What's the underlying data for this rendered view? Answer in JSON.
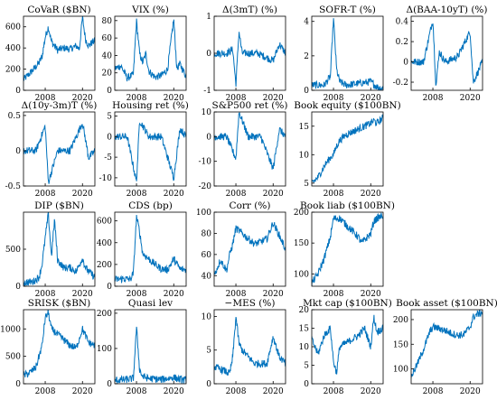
{
  "figure": {
    "line_color": "#0072BD",
    "frame_color": "#000000",
    "x_ticks": [
      "2008",
      "2020"
    ]
  },
  "chart_data": [
    {
      "type": "line",
      "title": "CoVaR ($BN)",
      "ylim": [
        0,
        700
      ],
      "yticks": [
        "0",
        "200",
        "400",
        "600"
      ],
      "x": [
        2001,
        2004,
        2006,
        2007,
        2008,
        2009,
        2010,
        2012,
        2014,
        2016,
        2018,
        2019,
        2020,
        2021,
        2022,
        2023,
        2024
      ],
      "values": [
        100,
        190,
        260,
        320,
        500,
        600,
        460,
        380,
        400,
        390,
        420,
        390,
        690,
        480,
        420,
        450,
        470
      ]
    },
    {
      "type": "line",
      "title": "VIX (%)",
      "ylim": [
        0,
        85
      ],
      "yticks": [
        "0",
        "20",
        "40",
        "60",
        "80"
      ],
      "x": [
        2001,
        2003,
        2005,
        2007,
        2008,
        2009,
        2010,
        2011,
        2012,
        2014,
        2016,
        2018,
        2020,
        2021,
        2022,
        2024
      ],
      "values": [
        25,
        28,
        14,
        18,
        80,
        42,
        32,
        42,
        22,
        15,
        17,
        24,
        82,
        25,
        30,
        16
      ]
    },
    {
      "type": "line",
      "title": "Δ(3mT) (%)",
      "ylim": [
        -1,
        1
      ],
      "yticks": [
        "-1",
        "0",
        "1"
      ],
      "x": [
        2001,
        2005,
        2007,
        2008,
        2009,
        2010,
        2015,
        2020,
        2022,
        2024
      ],
      "values": [
        0,
        0,
        0.1,
        -0.85,
        0.6,
        0,
        0,
        -0.2,
        0.25,
        0
      ]
    },
    {
      "type": "line",
      "title": "SOFR-T (%)",
      "ylim": [
        0,
        4.3
      ],
      "yticks": [
        "0",
        "2",
        "4"
      ],
      "x": [
        2001,
        2005,
        2007,
        2008,
        2009,
        2010,
        2012,
        2016,
        2020,
        2022,
        2024
      ],
      "values": [
        0.3,
        0.3,
        0.8,
        4.2,
        1.2,
        0.5,
        0.3,
        0.4,
        0.5,
        0.2,
        0.1
      ]
    },
    {
      "type": "line",
      "title": "Δ(BAA-10yT) (%)",
      "ylim": [
        -0.28,
        0.45
      ],
      "yticks": [
        "-0.2",
        "0",
        "0.2",
        "0.4"
      ],
      "x": [
        2001,
        2005,
        2008,
        2009,
        2010,
        2012,
        2016,
        2020,
        2021,
        2024
      ],
      "values": [
        0,
        0,
        0.42,
        -0.25,
        0.1,
        0,
        0.05,
        0.3,
        -0.2,
        0
      ]
    },
    {
      "type": "line",
      "title": "Δ(10y-3m)T (%)",
      "ylim": [
        -0.5,
        0.55
      ],
      "yticks": [
        "-0.5",
        "0",
        "0.5"
      ],
      "x": [
        2001,
        2005,
        2008,
        2009,
        2012,
        2016,
        2020,
        2022,
        2024
      ],
      "values": [
        0,
        0,
        0.35,
        -0.45,
        0,
        0,
        0.4,
        -0.1,
        0
      ]
    },
    {
      "type": "line",
      "title": "Housing ret (%)",
      "ylim": [
        -12,
        6
      ],
      "yticks": [
        "-10",
        "-5",
        "0",
        "5"
      ],
      "x": [
        2001,
        2005,
        2008,
        2009,
        2012,
        2016,
        2020,
        2022,
        2024
      ],
      "values": [
        0,
        0,
        -11,
        4,
        0,
        0,
        -10,
        2,
        0
      ]
    },
    {
      "type": "line",
      "title": "S&P500 ret (%)",
      "ylim": [
        -20,
        10
      ],
      "yticks": [
        "-20",
        "-10",
        "0",
        "10"
      ],
      "x": [
        2001,
        2005,
        2008,
        2009,
        2012,
        2016,
        2020,
        2022,
        2024
      ],
      "values": [
        0,
        0,
        -9,
        10,
        0,
        0,
        -13,
        3,
        0
      ]
    },
    {
      "type": "line",
      "title": "Book equity ($100BN)",
      "ylim": [
        4.5,
        17.5
      ],
      "yticks": [
        "5",
        "10",
        "15"
      ],
      "x": [
        2001,
        2003,
        2005,
        2007,
        2008,
        2009,
        2010,
        2012,
        2014,
        2016,
        2018,
        2020,
        2021,
        2022,
        2024
      ],
      "values": [
        5,
        6,
        8,
        9.5,
        10,
        11.5,
        12.5,
        13.5,
        14,
        14.5,
        15,
        15.5,
        16,
        15.5,
        16.5
      ]
    },
    {
      "type": "line",
      "title": "DIP ($BN)",
      "ylim": [
        0,
        1000
      ],
      "yticks": [
        "0",
        "500"
      ],
      "x": [
        2001,
        2004,
        2006,
        2007,
        2008,
        2009,
        2010,
        2011,
        2012,
        2014,
        2016,
        2018,
        2020,
        2021,
        2022,
        2024
      ],
      "values": [
        50,
        60,
        120,
        300,
        650,
        980,
        400,
        900,
        350,
        250,
        250,
        200,
        380,
        250,
        200,
        120
      ]
    },
    {
      "type": "line",
      "title": "CDS (bp)",
      "ylim": [
        0,
        680
      ],
      "yticks": [
        "0",
        "200",
        "400",
        "600"
      ],
      "x": [
        2001,
        2004,
        2006,
        2007,
        2008,
        2009,
        2010,
        2012,
        2014,
        2016,
        2018,
        2020,
        2022,
        2024
      ],
      "values": [
        60,
        70,
        60,
        120,
        640,
        500,
        300,
        250,
        200,
        160,
        150,
        250,
        160,
        150
      ]
    },
    {
      "type": "line",
      "title": "Corr (%)",
      "ylim": [
        30,
        100
      ],
      "yticks": [
        "40",
        "60",
        "80",
        "100"
      ],
      "x": [
        2001,
        2003,
        2005,
        2006,
        2007,
        2008,
        2010,
        2012,
        2014,
        2016,
        2018,
        2020,
        2022,
        2024
      ],
      "values": [
        40,
        55,
        45,
        60,
        70,
        85,
        80,
        75,
        70,
        72,
        75,
        90,
        78,
        65
      ]
    },
    {
      "type": "line",
      "title": "Book liab ($100BN)",
      "ylim": [
        80,
        200
      ],
      "yticks": [
        "100",
        "150",
        "200"
      ],
      "x": [
        2001,
        2003,
        2005,
        2007,
        2008,
        2010,
        2012,
        2014,
        2016,
        2017,
        2018,
        2020,
        2021,
        2022,
        2024
      ],
      "values": [
        85,
        100,
        125,
        160,
        190,
        190,
        180,
        170,
        160,
        150,
        155,
        165,
        185,
        190,
        195
      ]
    },
    {
      "type": "line",
      "title": "SRISK ($BN)",
      "ylim": [
        0,
        1350
      ],
      "yticks": [
        "0",
        "500",
        "1000"
      ],
      "x": [
        2001,
        2003,
        2005,
        2007,
        2008,
        2009,
        2010,
        2012,
        2014,
        2016,
        2018,
        2020,
        2022,
        2024
      ],
      "values": [
        150,
        200,
        300,
        700,
        1200,
        1300,
        1000,
        900,
        800,
        700,
        650,
        1000,
        750,
        700
      ]
    },
    {
      "type": "line",
      "title": "Quasi lev",
      "ylim": [
        0,
        210
      ],
      "yticks": [
        "0",
        "100",
        "200"
      ],
      "x": [
        2001,
        2005,
        2007,
        2008,
        2009,
        2010,
        2012,
        2016,
        2020,
        2022,
        2024
      ],
      "values": [
        10,
        12,
        15,
        160,
        40,
        20,
        15,
        12,
        18,
        12,
        10
      ]
    },
    {
      "type": "line",
      "title": "−MES (%)",
      "ylim": [
        0,
        11
      ],
      "yticks": [
        "0",
        "5",
        "10"
      ],
      "x": [
        2001,
        2004,
        2006,
        2007,
        2008,
        2009,
        2010,
        2012,
        2014,
        2016,
        2018,
        2020,
        2022,
        2024
      ],
      "values": [
        2.5,
        2,
        1.5,
        4,
        10,
        6,
        5,
        4,
        3,
        3,
        3,
        7,
        4,
        3
      ]
    },
    {
      "type": "line",
      "title": "Mkt cap ($100BN)",
      "ylim": [
        0,
        20
      ],
      "yticks": [
        "0",
        "5",
        "10",
        "15",
        "20"
      ],
      "x": [
        2001,
        2003,
        2005,
        2007,
        2008,
        2009,
        2010,
        2012,
        2014,
        2016,
        2018,
        2020,
        2021,
        2022,
        2024
      ],
      "values": [
        12,
        8,
        13,
        15,
        6,
        3,
        10,
        11,
        12,
        13,
        15,
        10,
        18,
        14,
        15
      ]
    },
    {
      "type": "line",
      "title": "Book asset ($100BN)",
      "ylim": [
        70,
        220
      ],
      "yticks": [
        "100",
        "150",
        "200"
      ],
      "x": [
        2001,
        2003,
        2005,
        2007,
        2008,
        2010,
        2012,
        2014,
        2016,
        2018,
        2020,
        2021,
        2022,
        2024
      ],
      "values": [
        85,
        110,
        140,
        175,
        185,
        182,
        178,
        172,
        168,
        170,
        185,
        205,
        210,
        215
      ]
    }
  ]
}
